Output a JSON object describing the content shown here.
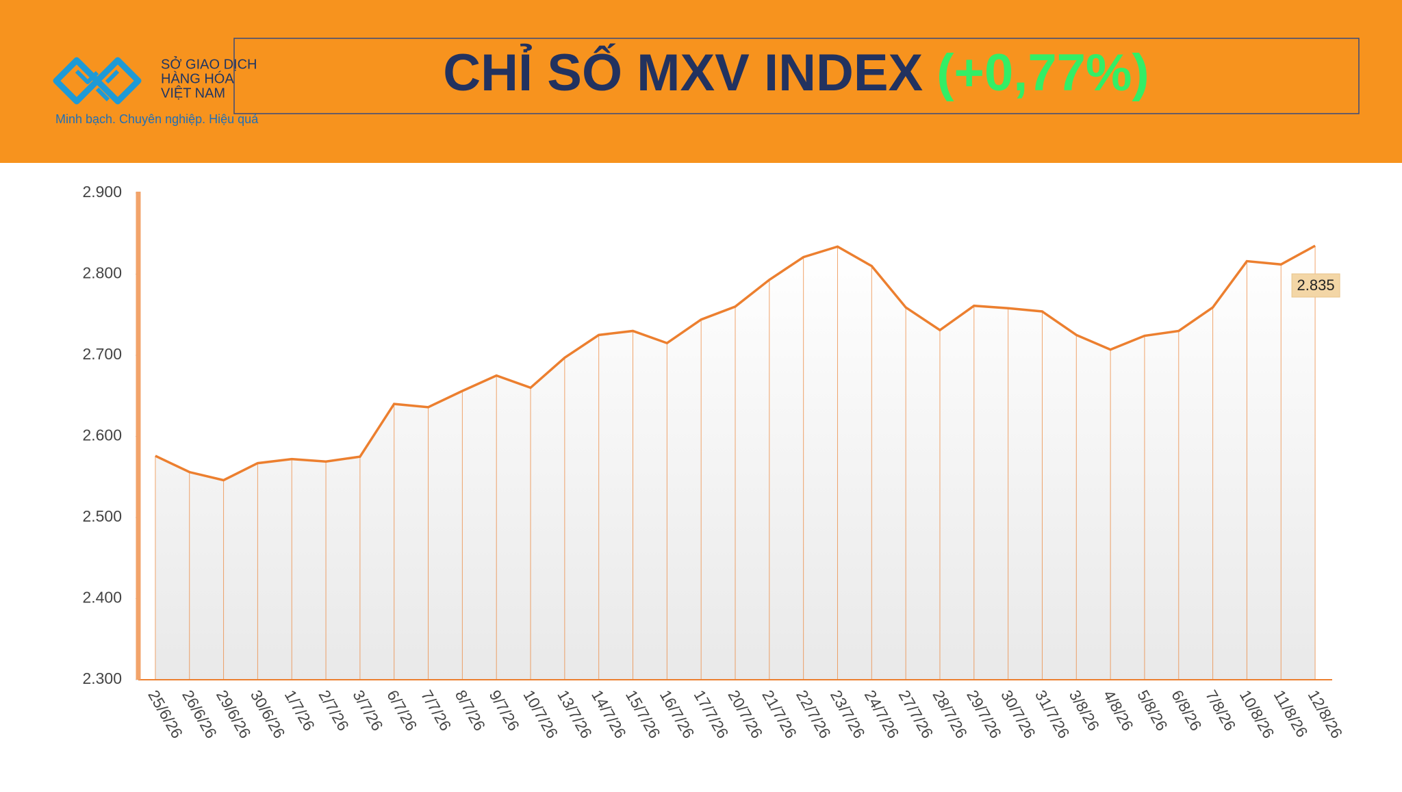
{
  "header": {
    "logo_lines": [
      "SỞ GIAO DỊCH",
      "HÀNG HÓA",
      "VIỆT NAM"
    ],
    "tagline": "Minh bạch. Chuyên nghiệp. Hiệu quả"
  },
  "chart_data": {
    "type": "line",
    "title": "CHỈ SỐ MXV INDEX",
    "change": "(+0,77%)",
    "categories": [
      "25/6/26",
      "26/6/26",
      "29/6/26",
      "30/6/26",
      "1/7/26",
      "2/7/26",
      "3/7/26",
      "6/7/26",
      "7/7/26",
      "8/7/26",
      "9/7/26",
      "10/7/26",
      "13/7/26",
      "14/7/26",
      "15/7/26",
      "16/7/26",
      "17/7/26",
      "20/7/26",
      "21/7/26",
      "22/7/26",
      "23/7/26",
      "24/7/26",
      "27/7/26",
      "28/7/26",
      "29/7/26",
      "30/7/26",
      "31/7/26",
      "3/8/26",
      "4/8/26",
      "5/8/26",
      "6/8/26",
      "7/8/26",
      "10/8/26",
      "11/8/26",
      "12/8/26"
    ],
    "values": [
      2576,
      2556,
      2546,
      2567,
      2572,
      2569,
      2575,
      2640,
      2636,
      2656,
      2675,
      2660,
      2697,
      2725,
      2730,
      2715,
      2744,
      2760,
      2793,
      2821,
      2834,
      2810,
      2759,
      2731,
      2761,
      2758,
      2754,
      2725,
      2707,
      2724,
      2730,
      2759,
      2816,
      2812,
      2835
    ],
    "value_labels": [
      null,
      null,
      null,
      null,
      null,
      null,
      null,
      null,
      null,
      null,
      null,
      null,
      null,
      null,
      null,
      null,
      null,
      null,
      null,
      null,
      null,
      null,
      null,
      null,
      null,
      null,
      null,
      null,
      null,
      null,
      null,
      null,
      null,
      null,
      "2.835"
    ],
    "color": "#ec7f2f",
    "ylim": [
      2300,
      2900
    ],
    "yticks": [
      {
        "value": 2300,
        "label": "2.300"
      },
      {
        "value": 2400,
        "label": "2.400"
      },
      {
        "value": 2500,
        "label": "2.500"
      },
      {
        "value": 2600,
        "label": "2.600"
      },
      {
        "value": 2700,
        "label": "2.700"
      },
      {
        "value": 2800,
        "label": "2.800"
      },
      {
        "value": 2900,
        "label": "2.900"
      }
    ]
  }
}
